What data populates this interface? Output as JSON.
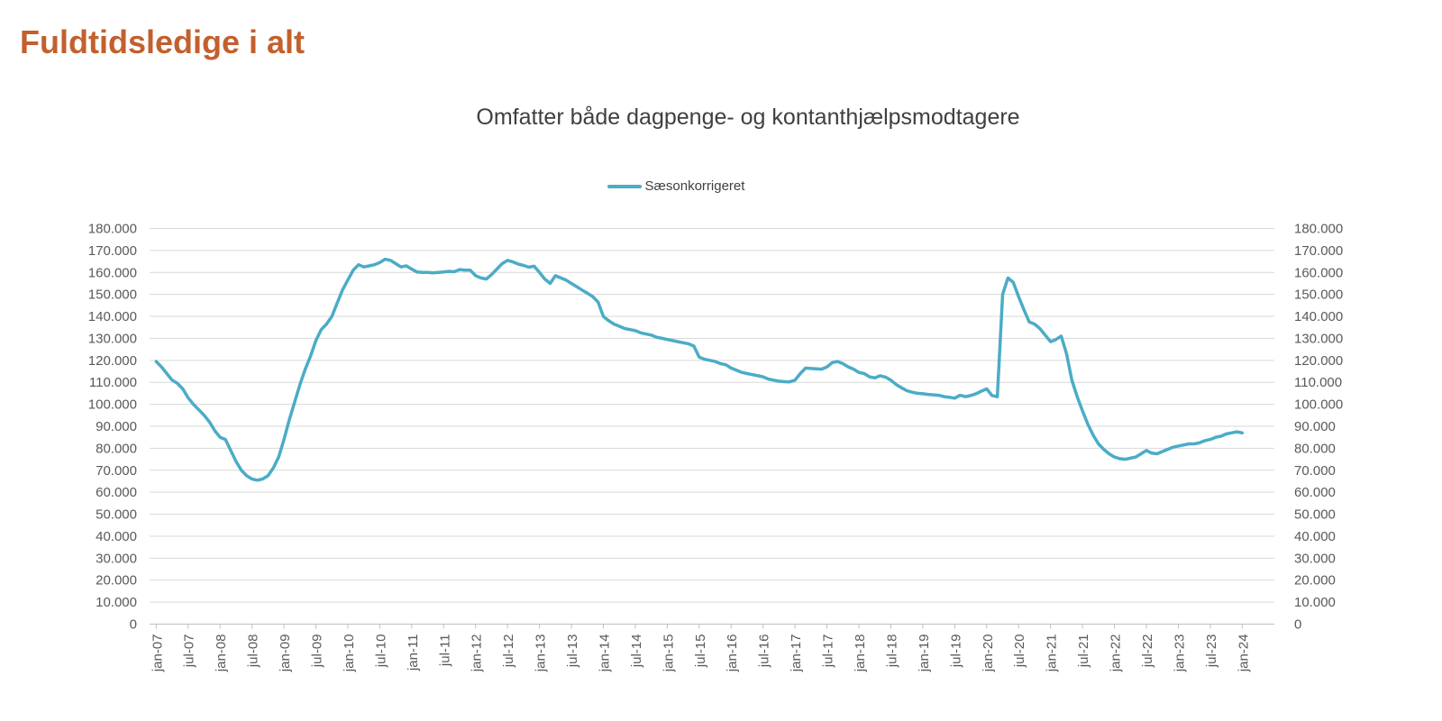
{
  "page": {
    "title": "Fuldtidsledige i alt"
  },
  "chart": {
    "subtitle": "Omfatter både dagpenge- og kontanthjælpsmodtagere",
    "legend": [
      {
        "label": "Sæsonkorrigeret",
        "color": "#4bacc6"
      }
    ]
  },
  "colors": {
    "title": "#c2602e",
    "subtitle": "#3f3f3f",
    "series_line": "#4bacc6",
    "gridline": "#d9d9d9",
    "axis_line": "#bfbfbf",
    "tick_label": "#595959"
  },
  "chart_data": {
    "type": "line",
    "title": "Fuldtidsledige i alt",
    "subtitle": "Omfatter både dagpenge- og kontanthjælpsmodtagere",
    "grid": true,
    "legend_position": "top-center",
    "y_axis": {
      "min": 0,
      "max": 180000,
      "step": 10000,
      "tick_labels": [
        "0",
        "10.000",
        "20.000",
        "30.000",
        "40.000",
        "50.000",
        "60.000",
        "70.000",
        "80.000",
        "90.000",
        "100.000",
        "110.000",
        "120.000",
        "130.000",
        "140.000",
        "150.000",
        "160.000",
        "170.000",
        "180.000"
      ],
      "shown_on": "both-sides"
    },
    "x_axis": {
      "monthly_start": "jan-07",
      "monthly_end": "jan-24",
      "tick_every_months": 6,
      "tick_labels": [
        "jan-07",
        "jul-07",
        "jan-08",
        "jul-08",
        "jan-09",
        "jul-09",
        "jan-10",
        "jul-10",
        "jan-11",
        "jul-11",
        "jan-12",
        "jul-12",
        "jan-13",
        "jul-13",
        "jan-14",
        "jul-14",
        "jan-15",
        "jul-15",
        "jan-16",
        "jul-16",
        "jan-17",
        "jul-17",
        "jan-18",
        "jul-18",
        "jan-19",
        "jul-19",
        "jan-20",
        "jul-20",
        "jan-21",
        "jul-21",
        "jan-22",
        "jul-22",
        "jan-23",
        "jul-23",
        "jan-24"
      ],
      "label_rotation_deg": -90
    },
    "series": [
      {
        "name": "Sæsonkorrigeret",
        "color": "#4bacc6",
        "monthly_values": [
          119500,
          117000,
          114000,
          111000,
          109500,
          107000,
          103000,
          100000,
          97500,
          95000,
          92000,
          88000,
          85000,
          84000,
          79000,
          74000,
          70000,
          67500,
          66000,
          65500,
          66000,
          67500,
          71000,
          76000,
          84000,
          93000,
          101000,
          109000,
          116000,
          122000,
          129000,
          134000,
          136500,
          140000,
          146000,
          152000,
          156500,
          161000,
          163500,
          162500,
          163000,
          163500,
          164500,
          166000,
          165500,
          164000,
          162500,
          163000,
          161500,
          160200,
          160000,
          160000,
          159800,
          160000,
          160200,
          160500,
          160300,
          161300,
          161000,
          161000,
          158500,
          157500,
          157000,
          159000,
          161500,
          164000,
          165500,
          164800,
          163800,
          163200,
          162400,
          162800,
          160000,
          157000,
          155000,
          158500,
          157500,
          156500,
          155000,
          153500,
          152000,
          150500,
          149000,
          146500,
          140000,
          138000,
          136500,
          135500,
          134500,
          134000,
          133500,
          132500,
          132000,
          131500,
          130500,
          130000,
          129500,
          129000,
          128500,
          128000,
          127500,
          126500,
          121500,
          120500,
          120000,
          119500,
          118500,
          118000,
          116500,
          115500,
          114500,
          114000,
          113500,
          113000,
          112500,
          111500,
          111000,
          110500,
          110300,
          110200,
          111000,
          114000,
          116500,
          116300,
          116100,
          116000,
          117000,
          119000,
          119500,
          118500,
          117000,
          116000,
          114500,
          114000,
          112500,
          112000,
          113000,
          112400,
          111000,
          109000,
          107500,
          106200,
          105500,
          105000,
          104800,
          104500,
          104300,
          104100,
          103500,
          103200,
          102800,
          104100,
          103500,
          104000,
          104800,
          106000,
          107000,
          104000,
          103500,
          150000,
          157500,
          155500,
          149000,
          143000,
          137500,
          136500,
          134500,
          131500,
          128500,
          129500,
          131000,
          123000,
          111000,
          103500,
          97000,
          91000,
          86000,
          82000,
          79500,
          77500,
          76000,
          75300,
          75000,
          75500,
          76000,
          77500,
          79000,
          77800,
          77500,
          78500,
          79500,
          80500,
          81000,
          81500,
          82000,
          82000,
          82500,
          83500,
          84000,
          85000,
          85500,
          86500,
          87000,
          87500,
          87000
        ]
      }
    ]
  }
}
